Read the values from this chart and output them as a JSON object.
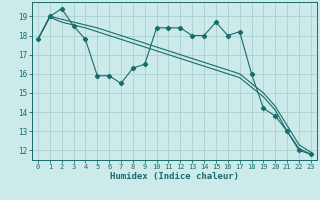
{
  "xlabel": "Humidex (Indice chaleur)",
  "bg_color": "#cceaea",
  "grid_color": "#aad0d0",
  "line_color": "#1a6b6b",
  "xlim": [
    -0.5,
    23.5
  ],
  "ylim": [
    11.5,
    19.75
  ],
  "yticks": [
    12,
    13,
    14,
    15,
    16,
    17,
    18,
    19
  ],
  "xticks": [
    0,
    1,
    2,
    3,
    4,
    5,
    6,
    7,
    8,
    9,
    10,
    11,
    12,
    13,
    14,
    15,
    16,
    17,
    18,
    19,
    20,
    21,
    22,
    23
  ],
  "line1_x": [
    0,
    1,
    2,
    3,
    4,
    5,
    6,
    7,
    8,
    9,
    10,
    11,
    12,
    13,
    14,
    15,
    16,
    17,
    18,
    19,
    20,
    21,
    22,
    23
  ],
  "line1_y": [
    17.8,
    19.0,
    19.4,
    18.5,
    17.8,
    15.9,
    15.9,
    15.5,
    16.3,
    16.5,
    18.4,
    18.4,
    18.4,
    18.0,
    18.0,
    18.7,
    18.0,
    18.2,
    16.0,
    14.2,
    13.8,
    13.0,
    12.0,
    11.8
  ],
  "line2_x": [
    0,
    1,
    2,
    3,
    4,
    5,
    6,
    7,
    8,
    9,
    10,
    11,
    12,
    13,
    14,
    15,
    16,
    17,
    18,
    19,
    20,
    21,
    22,
    23
  ],
  "line2_y": [
    17.8,
    19.0,
    18.85,
    18.7,
    18.55,
    18.4,
    18.2,
    18.0,
    17.8,
    17.6,
    17.4,
    17.2,
    17.0,
    16.8,
    16.6,
    16.4,
    16.2,
    16.0,
    15.5,
    15.0,
    14.3,
    13.3,
    12.3,
    11.9
  ],
  "line3_x": [
    0,
    1,
    2,
    3,
    4,
    5,
    6,
    7,
    8,
    9,
    10,
    11,
    12,
    13,
    14,
    15,
    16,
    17,
    18,
    19,
    20,
    21,
    22,
    23
  ],
  "line3_y": [
    17.8,
    18.95,
    18.7,
    18.55,
    18.4,
    18.2,
    18.0,
    17.8,
    17.6,
    17.4,
    17.2,
    17.0,
    16.8,
    16.6,
    16.4,
    16.2,
    16.0,
    15.8,
    15.3,
    14.8,
    14.1,
    13.0,
    12.1,
    11.8
  ]
}
